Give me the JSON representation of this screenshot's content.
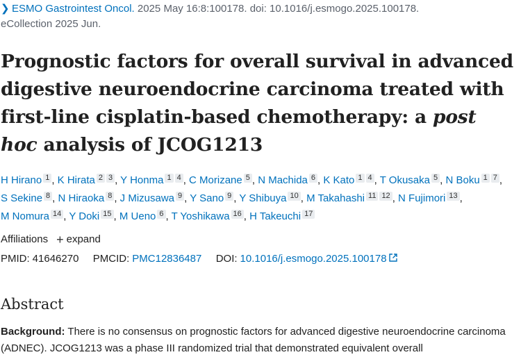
{
  "citation": {
    "journal": "ESMO Gastrointest Oncol.",
    "details": "2025 May 16:8:100178. doi: 10.1016/j.esmogo.2025.100178.",
    "ecollection": "eCollection 2025 Jun."
  },
  "title": {
    "part1": "Prognostic factors for overall survival in advanced digestive neuroendocrine carcinoma treated with first-line cisplatin-based chemotherapy: a ",
    "italic": "post hoc",
    "part2": " analysis of JCOG1213"
  },
  "authors": [
    {
      "name": "H Hirano",
      "affs": [
        "1"
      ]
    },
    {
      "name": "K Hirata",
      "affs": [
        "2",
        "3"
      ]
    },
    {
      "name": "Y Honma",
      "affs": [
        "1",
        "4"
      ]
    },
    {
      "name": "C Morizane",
      "affs": [
        "5"
      ]
    },
    {
      "name": "N Machida",
      "affs": [
        "6"
      ]
    },
    {
      "name": "K Kato",
      "affs": [
        "1",
        "4"
      ]
    },
    {
      "name": "T Okusaka",
      "affs": [
        "5"
      ]
    },
    {
      "name": "N Boku",
      "affs": [
        "1",
        "7"
      ]
    },
    {
      "name": "S Sekine",
      "affs": [
        "8"
      ]
    },
    {
      "name": "N Hiraoka",
      "affs": [
        "8"
      ]
    },
    {
      "name": "J Mizusawa",
      "affs": [
        "9"
      ]
    },
    {
      "name": "Y Sano",
      "affs": [
        "9"
      ]
    },
    {
      "name": "Y Shibuya",
      "affs": [
        "10"
      ]
    },
    {
      "name": "M Takahashi",
      "affs": [
        "11",
        "12"
      ]
    },
    {
      "name": "N Fujimori",
      "affs": [
        "13"
      ]
    },
    {
      "name": "M Nomura",
      "affs": [
        "14"
      ]
    },
    {
      "name": "Y Doki",
      "affs": [
        "15"
      ]
    },
    {
      "name": "M Ueno",
      "affs": [
        "6"
      ]
    },
    {
      "name": "T Yoshikawa",
      "affs": [
        "16"
      ]
    },
    {
      "name": "H Takeuchi",
      "affs": [
        "17"
      ]
    }
  ],
  "affiliations": {
    "label": "Affiliations",
    "expand": "expand"
  },
  "ids": {
    "pmid_label": "PMID:",
    "pmid": "41646270",
    "pmcid_label": "PMCID:",
    "pmcid": "PMC12836487",
    "doi_label": "DOI:",
    "doi": "10.1016/j.esmogo.2025.100178"
  },
  "abstract": {
    "heading": "Abstract",
    "background_label": "Background:",
    "background_text": " There is no consensus on prognostic factors for advanced digestive neuroendocrine carcinoma (ADNEC). JCOG1213 was a phase III randomized trial that demonstrated equivalent overall"
  },
  "colors": {
    "link": "#0071bc",
    "text": "#212121",
    "muted": "#5b616b",
    "badge": "#e9ecef"
  },
  "icons": {
    "journal": "chevron-right-icon",
    "expand": "plus-icon",
    "doi": "external-link-icon"
  }
}
